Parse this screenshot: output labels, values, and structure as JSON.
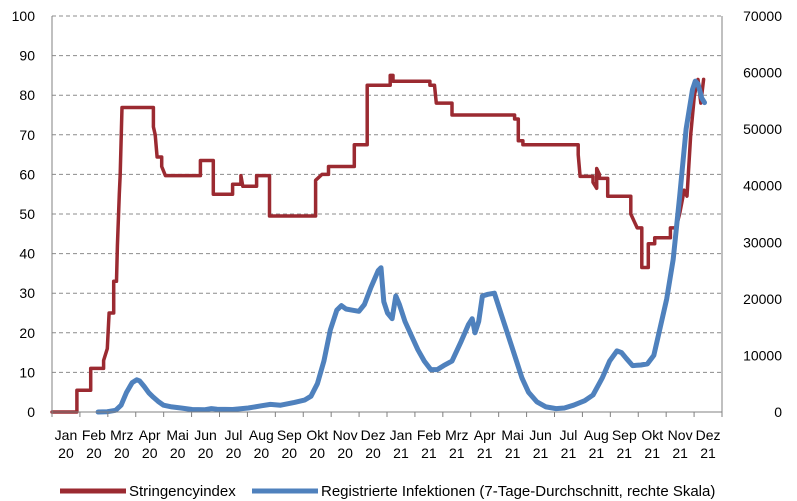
{
  "chart_data": {
    "type": "line",
    "title": "",
    "xlabel": "",
    "ylabel_left": "",
    "ylabel_right": "",
    "ylim_left": [
      0,
      100
    ],
    "ylim_right": [
      0,
      70000
    ],
    "yticks_left": [
      "0",
      "10",
      "20",
      "30",
      "40",
      "50",
      "60",
      "70",
      "80",
      "90",
      "100"
    ],
    "yticks_right": [
      "0",
      "10000",
      "20000",
      "30000",
      "40000",
      "50000",
      "60000",
      "70000"
    ],
    "grid": "horizontal dashed",
    "legend_position": "bottom",
    "x_tick_labels": [
      {
        "month": "Jan",
        "year": "20"
      },
      {
        "month": "Feb",
        "year": "20"
      },
      {
        "month": "Mrz",
        "year": "20"
      },
      {
        "month": "Apr",
        "year": "20"
      },
      {
        "month": "Mai",
        "year": "20"
      },
      {
        "month": "Jun",
        "year": "20"
      },
      {
        "month": "Jul",
        "year": "20"
      },
      {
        "month": "Aug",
        "year": "20"
      },
      {
        "month": "Sep",
        "year": "20"
      },
      {
        "month": "Okt",
        "year": "20"
      },
      {
        "month": "Nov",
        "year": "20"
      },
      {
        "month": "Dez",
        "year": "20"
      },
      {
        "month": "Jan",
        "year": "21"
      },
      {
        "month": "Feb",
        "year": "21"
      },
      {
        "month": "Mrz",
        "year": "21"
      },
      {
        "month": "Apr",
        "year": "21"
      },
      {
        "month": "Mai",
        "year": "21"
      },
      {
        "month": "Jun",
        "year": "21"
      },
      {
        "month": "Jul",
        "year": "21"
      },
      {
        "month": "Aug",
        "year": "21"
      },
      {
        "month": "Sep",
        "year": "21"
      },
      {
        "month": "Okt",
        "year": "21"
      },
      {
        "month": "Nov",
        "year": "21"
      },
      {
        "month": "Dez",
        "year": "21"
      }
    ],
    "series": [
      {
        "name": "Stringencyindex",
        "axis": "left",
        "color": "#9b2a31",
        "points": [
          [
            "2020-01-01",
            0
          ],
          [
            "2020-01-28",
            0
          ],
          [
            "2020-01-28",
            5.5
          ],
          [
            "2020-02-12",
            5.5
          ],
          [
            "2020-02-12",
            11
          ],
          [
            "2020-02-26",
            11
          ],
          [
            "2020-02-26",
            13
          ],
          [
            "2020-03-01",
            16
          ],
          [
            "2020-03-03",
            25
          ],
          [
            "2020-03-08",
            25
          ],
          [
            "2020-03-08",
            33
          ],
          [
            "2020-03-11",
            33
          ],
          [
            "2020-03-12",
            42
          ],
          [
            "2020-03-14",
            55
          ],
          [
            "2020-03-15",
            60
          ],
          [
            "2020-03-17",
            76.9
          ],
          [
            "2020-04-20",
            76.9
          ],
          [
            "2020-04-20",
            72
          ],
          [
            "2020-04-22",
            70
          ],
          [
            "2020-04-24",
            64.4
          ],
          [
            "2020-04-29",
            64.4
          ],
          [
            "2020-04-29",
            62
          ],
          [
            "2020-05-03",
            59.7
          ],
          [
            "2020-06-10",
            59.7
          ],
          [
            "2020-06-10",
            63.5
          ],
          [
            "2020-06-24",
            63.5
          ],
          [
            "2020-06-24",
            55
          ],
          [
            "2020-07-15",
            55
          ],
          [
            "2020-07-15",
            57.5
          ],
          [
            "2020-07-24",
            57.5
          ],
          [
            "2020-07-24",
            59.7
          ],
          [
            "2020-07-26",
            57
          ],
          [
            "2020-08-10",
            57
          ],
          [
            "2020-08-10",
            59.7
          ],
          [
            "2020-08-24",
            59.7
          ],
          [
            "2020-08-24",
            49.5
          ],
          [
            "2020-10-13",
            49.5
          ],
          [
            "2020-10-13",
            58.5
          ],
          [
            "2020-10-20",
            60
          ],
          [
            "2020-10-27",
            60
          ],
          [
            "2020-10-27",
            62
          ],
          [
            "2020-11-24",
            62
          ],
          [
            "2020-11-24",
            67.5
          ],
          [
            "2020-12-08",
            67.5
          ],
          [
            "2020-12-08",
            82.5
          ],
          [
            "2021-01-02",
            82.5
          ],
          [
            "2021-01-02",
            85
          ],
          [
            "2021-01-05",
            85
          ],
          [
            "2021-01-05",
            83.5
          ],
          [
            "2021-02-14",
            83.5
          ],
          [
            "2021-02-14",
            82.5
          ],
          [
            "2021-02-19",
            82.5
          ],
          [
            "2021-02-21",
            78
          ],
          [
            "2021-03-10",
            78
          ],
          [
            "2021-03-10",
            75
          ],
          [
            "2021-05-17",
            75
          ],
          [
            "2021-05-17",
            74
          ],
          [
            "2021-05-21",
            74
          ],
          [
            "2021-05-21",
            68.5
          ],
          [
            "2021-05-26",
            68.5
          ],
          [
            "2021-05-26",
            67.5
          ],
          [
            "2021-07-25",
            67.5
          ],
          [
            "2021-07-25",
            65
          ],
          [
            "2021-07-27",
            59.5
          ],
          [
            "2021-08-10",
            59.5
          ],
          [
            "2021-08-10",
            58
          ],
          [
            "2021-08-14",
            56.5
          ],
          [
            "2021-08-14",
            61.5
          ],
          [
            "2021-08-17",
            60
          ],
          [
            "2021-08-17",
            59
          ],
          [
            "2021-08-26",
            59
          ],
          [
            "2021-08-26",
            54.5
          ],
          [
            "2021-09-20",
            54.5
          ],
          [
            "2021-09-20",
            50
          ],
          [
            "2021-09-27",
            46.5
          ],
          [
            "2021-10-02",
            46.5
          ],
          [
            "2021-10-02",
            36.5
          ],
          [
            "2021-10-09",
            36.5
          ],
          [
            "2021-10-09",
            42.5
          ],
          [
            "2021-10-16",
            42.5
          ],
          [
            "2021-10-16",
            44
          ],
          [
            "2021-11-02",
            44
          ],
          [
            "2021-11-02",
            46.5
          ],
          [
            "2021-11-08",
            46.5
          ],
          [
            "2021-11-12",
            50
          ],
          [
            "2021-11-17",
            56
          ],
          [
            "2021-11-20",
            54.5
          ],
          [
            "2021-11-24",
            70
          ],
          [
            "2021-11-28",
            80
          ],
          [
            "2021-12-02",
            84
          ],
          [
            "2021-12-05",
            78
          ],
          [
            "2021-12-08",
            84
          ]
        ]
      },
      {
        "name": "Registrierte Infektionen (7-Tage-Durchschnitt, rechte Skala)",
        "axis": "right",
        "color": "#4f81bd",
        "points": [
          [
            "2020-02-20",
            0
          ],
          [
            "2020-03-01",
            50
          ],
          [
            "2020-03-10",
            300
          ],
          [
            "2020-03-16",
            1200
          ],
          [
            "2020-03-22",
            3500
          ],
          [
            "2020-03-28",
            5200
          ],
          [
            "2020-04-02",
            5700
          ],
          [
            "2020-04-05",
            5500
          ],
          [
            "2020-04-10",
            4500
          ],
          [
            "2020-04-15",
            3400
          ],
          [
            "2020-04-20",
            2600
          ],
          [
            "2020-04-25",
            1900
          ],
          [
            "2020-05-01",
            1200
          ],
          [
            "2020-05-10",
            900
          ],
          [
            "2020-05-20",
            700
          ],
          [
            "2020-06-01",
            450
          ],
          [
            "2020-06-15",
            400
          ],
          [
            "2020-06-22",
            600
          ],
          [
            "2020-06-28",
            500
          ],
          [
            "2020-07-15",
            450
          ],
          [
            "2020-08-01",
            700
          ],
          [
            "2020-08-15",
            1100
          ],
          [
            "2020-08-25",
            1350
          ],
          [
            "2020-09-05",
            1200
          ],
          [
            "2020-09-20",
            1700
          ],
          [
            "2020-10-01",
            2100
          ],
          [
            "2020-10-08",
            2800
          ],
          [
            "2020-10-15",
            5000
          ],
          [
            "2020-10-22",
            9000
          ],
          [
            "2020-10-29",
            14500
          ],
          [
            "2020-11-05",
            18000
          ],
          [
            "2020-11-10",
            18800
          ],
          [
            "2020-11-15",
            18200
          ],
          [
            "2020-11-22",
            18000
          ],
          [
            "2020-11-29",
            17800
          ],
          [
            "2020-12-05",
            19000
          ],
          [
            "2020-12-12",
            22000
          ],
          [
            "2020-12-20",
            25000
          ],
          [
            "2020-12-23",
            25500
          ],
          [
            "2020-12-26",
            19500
          ],
          [
            "2020-12-30",
            17500
          ],
          [
            "2021-01-04",
            16500
          ],
          [
            "2021-01-08",
            20500
          ],
          [
            "2021-01-12",
            19000
          ],
          [
            "2021-01-18",
            16000
          ],
          [
            "2021-01-25",
            13500
          ],
          [
            "2021-02-01",
            11000
          ],
          [
            "2021-02-08",
            9000
          ],
          [
            "2021-02-15",
            7500
          ],
          [
            "2021-02-22",
            7500
          ],
          [
            "2021-03-01",
            8200
          ],
          [
            "2021-03-10",
            9000
          ],
          [
            "2021-03-20",
            12500
          ],
          [
            "2021-03-28",
            15500
          ],
          [
            "2021-04-01",
            16500
          ],
          [
            "2021-04-04",
            14000
          ],
          [
            "2021-04-08",
            16000
          ],
          [
            "2021-04-12",
            20500
          ],
          [
            "2021-04-18",
            20800
          ],
          [
            "2021-04-25",
            21000
          ],
          [
            "2021-05-02",
            17500
          ],
          [
            "2021-05-10",
            13500
          ],
          [
            "2021-05-18",
            9500
          ],
          [
            "2021-05-25",
            6000
          ],
          [
            "2021-06-01",
            3500
          ],
          [
            "2021-06-10",
            1800
          ],
          [
            "2021-06-20",
            900
          ],
          [
            "2021-07-01",
            600
          ],
          [
            "2021-07-10",
            700
          ],
          [
            "2021-07-20",
            1200
          ],
          [
            "2021-08-01",
            2000
          ],
          [
            "2021-08-10",
            3000
          ],
          [
            "2021-08-20",
            6000
          ],
          [
            "2021-08-28",
            9000
          ],
          [
            "2021-09-05",
            10800
          ],
          [
            "2021-09-10",
            10500
          ],
          [
            "2021-09-15",
            9500
          ],
          [
            "2021-09-22",
            8200
          ],
          [
            "2021-10-01",
            8300
          ],
          [
            "2021-10-08",
            8500
          ],
          [
            "2021-10-15",
            10000
          ],
          [
            "2021-10-22",
            15000
          ],
          [
            "2021-10-29",
            20000
          ],
          [
            "2021-11-05",
            27000
          ],
          [
            "2021-11-12",
            38000
          ],
          [
            "2021-11-19",
            50000
          ],
          [
            "2021-11-26",
            57000
          ],
          [
            "2021-11-29",
            58500
          ],
          [
            "2021-12-02",
            58000
          ],
          [
            "2021-12-06",
            55500
          ],
          [
            "2021-12-09",
            54700
          ]
        ]
      }
    ]
  }
}
